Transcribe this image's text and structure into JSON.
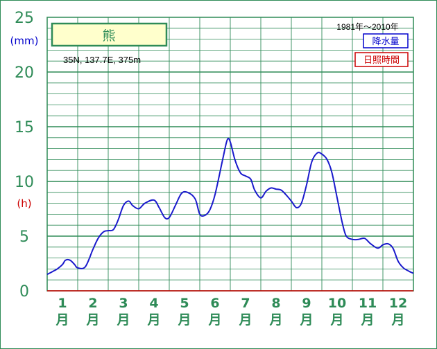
{
  "chart_data": {
    "type": "line",
    "title": "熊",
    "subtitle": "35N, 137.7E, 375m",
    "period": "1981年〜2010年",
    "y_unit_primary": "(mm)",
    "y_unit_secondary": "(h)",
    "ylim": [
      0,
      25
    ],
    "yticks": [
      "0",
      "5",
      "10",
      "15",
      "20",
      "25"
    ],
    "months": [
      "1",
      "2",
      "3",
      "4",
      "5",
      "6",
      "7",
      "8",
      "9",
      "10",
      "11",
      "12"
    ],
    "month_suffix": "月",
    "legend": [
      {
        "label": "降水量",
        "color": "#0000cc"
      },
      {
        "label": "日照時間",
        "color": "#cc0000"
      }
    ],
    "grid": true,
    "series": [
      {
        "name": "降水量",
        "color": "#1a1acc",
        "x": [
          0.0,
          0.2,
          0.33,
          0.5,
          0.6,
          0.75,
          0.9,
          1.0,
          1.25,
          1.5,
          1.67,
          1.85,
          2.0,
          2.17,
          2.33,
          2.5,
          2.67,
          2.8,
          3.0,
          3.2,
          3.5,
          3.67,
          3.85,
          4.0,
          4.2,
          4.4,
          4.6,
          4.85,
          5.0,
          5.17,
          5.33,
          5.5,
          5.75,
          5.9,
          6.0,
          6.15,
          6.33,
          6.5,
          6.67,
          6.8,
          7.0,
          7.17,
          7.33,
          7.5,
          7.67,
          7.85,
          8.0,
          8.17,
          8.33,
          8.5,
          8.67,
          8.85,
          9.0,
          9.17,
          9.33,
          9.5,
          9.67,
          9.8,
          10.0,
          10.2,
          10.4,
          10.6,
          10.83,
          11.0,
          11.17,
          11.33,
          11.5,
          11.67,
          11.85,
          12.0
        ],
        "y": [
          1.5,
          1.8,
          2.0,
          2.4,
          2.8,
          2.8,
          2.4,
          2.1,
          2.2,
          3.8,
          4.8,
          5.4,
          5.5,
          5.6,
          6.5,
          7.8,
          8.2,
          7.8,
          7.5,
          8.0,
          8.3,
          7.6,
          6.7,
          6.7,
          7.8,
          8.9,
          9.0,
          8.4,
          7.0,
          6.9,
          7.4,
          8.8,
          12.0,
          13.8,
          13.6,
          12.0,
          10.8,
          10.5,
          10.2,
          9.2,
          8.5,
          9.1,
          9.4,
          9.3,
          9.2,
          8.7,
          8.2,
          7.6,
          8.0,
          9.7,
          11.8,
          12.6,
          12.5,
          12.0,
          10.8,
          8.5,
          6.2,
          5.0,
          4.7,
          4.7,
          4.8,
          4.3,
          3.9,
          4.2,
          4.3,
          3.9,
          2.7,
          2.1,
          1.8,
          1.6
        ]
      },
      {
        "name": "日照時間",
        "color": "#cc0000",
        "x": [
          0,
          12
        ],
        "y": [
          0,
          0
        ]
      }
    ]
  }
}
